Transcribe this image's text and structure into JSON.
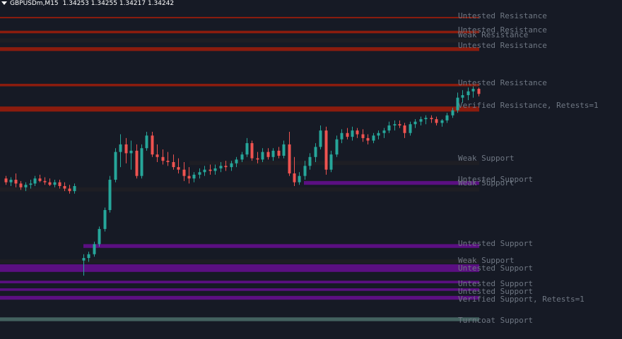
{
  "header": {
    "symbol_timeframe": "GBPUSDm,M15",
    "open": "1.34253",
    "high": "1.34255",
    "low": "1.34217",
    "close": "1.34242"
  },
  "zones": [
    {
      "label": "Untested Resistance",
      "type": "resistance",
      "price_top": 1.3656,
      "price_bottom": 1.3655
    },
    {
      "label": "Untested Resistance",
      "type": "resistance",
      "price_top": 1.3645,
      "price_bottom": 1.3643
    },
    {
      "label": "Weak Resistance",
      "type": "resistance",
      "price_top": 1.3639,
      "price_bottom": 1.3639
    },
    {
      "label": "Untested Resistance",
      "type": "resistance",
      "price_top": 1.3632,
      "price_bottom": 1.3629
    },
    {
      "label": "Untested Resistance",
      "type": "resistance",
      "price_top": 1.3603,
      "price_bottom": 1.3601
    },
    {
      "label": "Verified Resistance, Retests=1",
      "type": "resistance",
      "price_top": 1.3585,
      "price_bottom": 1.3581
    },
    {
      "label": "Weak Support",
      "type": "support",
      "price_top": 1.3542,
      "price_bottom": 1.3541
    },
    {
      "label": "Untested Support",
      "type": "support",
      "price_top": 1.3526,
      "price_bottom": 1.3523
    },
    {
      "label": "Weak Support",
      "type": "support",
      "price_top": 1.3521,
      "price_bottom": 1.352
    },
    {
      "label": "Untested Support",
      "type": "support",
      "price_top": 1.3476,
      "price_bottom": 1.3473
    },
    {
      "label": "Weak Support",
      "type": "support",
      "price_top": 1.3464,
      "price_bottom": 1.3463
    },
    {
      "label": "Untested Support",
      "type": "support",
      "price_top": 1.346,
      "price_bottom": 1.3454
    },
    {
      "label": "Untested Support",
      "type": "support",
      "price_top": 1.3447,
      "price_bottom": 1.3445
    },
    {
      "label": "Untested Support",
      "type": "support",
      "price_top": 1.3441,
      "price_bottom": 1.3439
    },
    {
      "label": "Verified Support, Retests=1",
      "type": "support",
      "price_top": 1.3435,
      "price_bottom": 1.3432
    },
    {
      "label": "Turncoat Support",
      "type": "support",
      "price_top": 1.3418,
      "price_bottom": 1.3415
    }
  ],
  "colors": {
    "background": "#161a25",
    "resistance": "#8b1c0e",
    "resistance_weak": "#1e1e24",
    "support": "#5b0f82",
    "support_weak": "#1e1e24",
    "turncoat": "#43615f",
    "bull": "#26a69a",
    "bear": "#ef5350",
    "label": "#6f7783"
  },
  "candles": [
    [
      1.3528,
      1.353,
      1.3523,
      1.3525
    ],
    [
      1.3525,
      1.3529,
      1.3522,
      1.3527
    ],
    [
      1.3527,
      1.3532,
      1.3521,
      1.3524
    ],
    [
      1.3524,
      1.3526,
      1.3519,
      1.3521
    ],
    [
      1.3521,
      1.3525,
      1.3518,
      1.3523
    ],
    [
      1.3523,
      1.3527,
      1.352,
      1.3524
    ],
    [
      1.3524,
      1.353,
      1.3522,
      1.3528
    ],
    [
      1.3528,
      1.3531,
      1.3525,
      1.3526
    ],
    [
      1.3526,
      1.3529,
      1.3523,
      1.3525
    ],
    [
      1.3525,
      1.3528,
      1.3522,
      1.3523
    ],
    [
      1.3523,
      1.3527,
      1.3521,
      1.3525
    ],
    [
      1.3525,
      1.3527,
      1.352,
      1.3522
    ],
    [
      1.3522,
      1.3525,
      1.3518,
      1.352
    ],
    [
      1.352,
      1.3523,
      1.3516,
      1.3518
    ],
    [
      1.3518,
      1.3524,
      1.3516,
      1.3522
    ],
    [
      1.3463,
      1.3468,
      1.3451,
      1.3465
    ],
    [
      1.3465,
      1.347,
      1.3462,
      1.3468
    ],
    [
      1.3468,
      1.3478,
      1.3466,
      1.3476
    ],
    [
      1.3476,
      1.349,
      1.3474,
      1.3488
    ],
    [
      1.3488,
      1.3505,
      1.3486,
      1.3503
    ],
    [
      1.3503,
      1.353,
      1.3501,
      1.3527
    ],
    [
      1.3527,
      1.3552,
      1.3525,
      1.3549
    ],
    [
      1.3549,
      1.3563,
      1.3537,
      1.3555
    ],
    [
      1.3555,
      1.356,
      1.354,
      1.3548
    ],
    [
      1.3548,
      1.3558,
      1.3535,
      1.355
    ],
    [
      1.355,
      1.3555,
      1.3528,
      1.353
    ],
    [
      1.353,
      1.3555,
      1.3528,
      1.3552
    ],
    [
      1.3552,
      1.3565,
      1.355,
      1.3562
    ],
    [
      1.3562,
      1.3565,
      1.3545,
      1.3547
    ],
    [
      1.3547,
      1.3555,
      1.3541,
      1.3545
    ],
    [
      1.3545,
      1.3551,
      1.3539,
      1.3542
    ],
    [
      1.3542,
      1.3549,
      1.3538,
      1.3541
    ],
    [
      1.3541,
      1.3547,
      1.3535,
      1.3537
    ],
    [
      1.3537,
      1.3544,
      1.3532,
      1.3535
    ],
    [
      1.3535,
      1.3541,
      1.3526,
      1.353
    ],
    [
      1.353,
      1.3537,
      1.3524,
      1.3528
    ],
    [
      1.3528,
      1.3533,
      1.3525,
      1.3531
    ],
    [
      1.3531,
      1.3536,
      1.3528,
      1.3533
    ],
    [
      1.3533,
      1.3538,
      1.353,
      1.3535
    ],
    [
      1.3535,
      1.3539,
      1.3531,
      1.3534
    ],
    [
      1.3534,
      1.3539,
      1.3531,
      1.3536
    ],
    [
      1.3536,
      1.3541,
      1.3533,
      1.3538
    ],
    [
      1.3538,
      1.3542,
      1.3534,
      1.3537
    ],
    [
      1.3537,
      1.3542,
      1.3534,
      1.354
    ],
    [
      1.354,
      1.3545,
      1.3537,
      1.3543
    ],
    [
      1.3543,
      1.3549,
      1.3541,
      1.3547
    ],
    [
      1.3547,
      1.356,
      1.3545,
      1.3556
    ],
    [
      1.3556,
      1.3558,
      1.3542,
      1.3544
    ],
    [
      1.3544,
      1.3549,
      1.354,
      1.3543
    ],
    [
      1.3543,
      1.3552,
      1.3541,
      1.3549
    ],
    [
      1.3549,
      1.3552,
      1.3543,
      1.3545
    ],
    [
      1.3545,
      1.3552,
      1.3542,
      1.355
    ],
    [
      1.355,
      1.3553,
      1.3544,
      1.3546
    ],
    [
      1.3546,
      1.3558,
      1.3544,
      1.3555
    ],
    [
      1.3555,
      1.3565,
      1.353,
      1.3532
    ],
    [
      1.3532,
      1.3545,
      1.3522,
      1.3525
    ],
    [
      1.3525,
      1.3533,
      1.3523,
      1.353
    ],
    [
      1.353,
      1.3542,
      1.3527,
      1.3538
    ],
    [
      1.3538,
      1.3548,
      1.3535,
      1.3545
    ],
    [
      1.3545,
      1.3556,
      1.3541,
      1.3553
    ],
    [
      1.3553,
      1.357,
      1.3551,
      1.3566
    ],
    [
      1.3566,
      1.3569,
      1.3531,
      1.3535
    ],
    [
      1.3535,
      1.355,
      1.3533,
      1.3547
    ],
    [
      1.3547,
      1.3562,
      1.3545,
      1.3559
    ],
    [
      1.3559,
      1.3567,
      1.3556,
      1.3564
    ],
    [
      1.3564,
      1.3568,
      1.3559,
      1.3561
    ],
    [
      1.3561,
      1.3569,
      1.3558,
      1.3566
    ],
    [
      1.3566,
      1.3568,
      1.356,
      1.3563
    ],
    [
      1.3563,
      1.3567,
      1.3557,
      1.356
    ],
    [
      1.356,
      1.3563,
      1.3555,
      1.3558
    ],
    [
      1.3558,
      1.3564,
      1.3556,
      1.3562
    ],
    [
      1.3562,
      1.3566,
      1.3559,
      1.3564
    ],
    [
      1.3564,
      1.3568,
      1.356,
      1.3566
    ],
    [
      1.3566,
      1.3573,
      1.3564,
      1.357
    ],
    [
      1.357,
      1.3574,
      1.3566,
      1.3571
    ],
    [
      1.3571,
      1.3574,
      1.3568,
      1.357
    ],
    [
      1.357,
      1.3572,
      1.356,
      1.3564
    ],
    [
      1.3564,
      1.3573,
      1.3562,
      1.3571
    ],
    [
      1.3571,
      1.3575,
      1.3568,
      1.3573
    ],
    [
      1.3573,
      1.3577,
      1.357,
      1.3575
    ],
    [
      1.3575,
      1.3578,
      1.3571,
      1.3576
    ],
    [
      1.3576,
      1.3578,
      1.3572,
      1.3575
    ],
    [
      1.3575,
      1.3577,
      1.357,
      1.3572
    ],
    [
      1.3572,
      1.3575,
      1.3569,
      1.3574
    ],
    [
      1.3574,
      1.358,
      1.3572,
      1.3578
    ],
    [
      1.3578,
      1.3584,
      1.3576,
      1.3582
    ],
    [
      1.3582,
      1.3596,
      1.358,
      1.3592
    ],
    [
      1.3592,
      1.3598,
      1.3588,
      1.3594
    ],
    [
      1.3594,
      1.36,
      1.359,
      1.3597
    ],
    [
      1.3597,
      1.3601,
      1.3592,
      1.3599
    ],
    [
      1.3599,
      1.36,
      1.3593,
      1.3595
    ]
  ]
}
